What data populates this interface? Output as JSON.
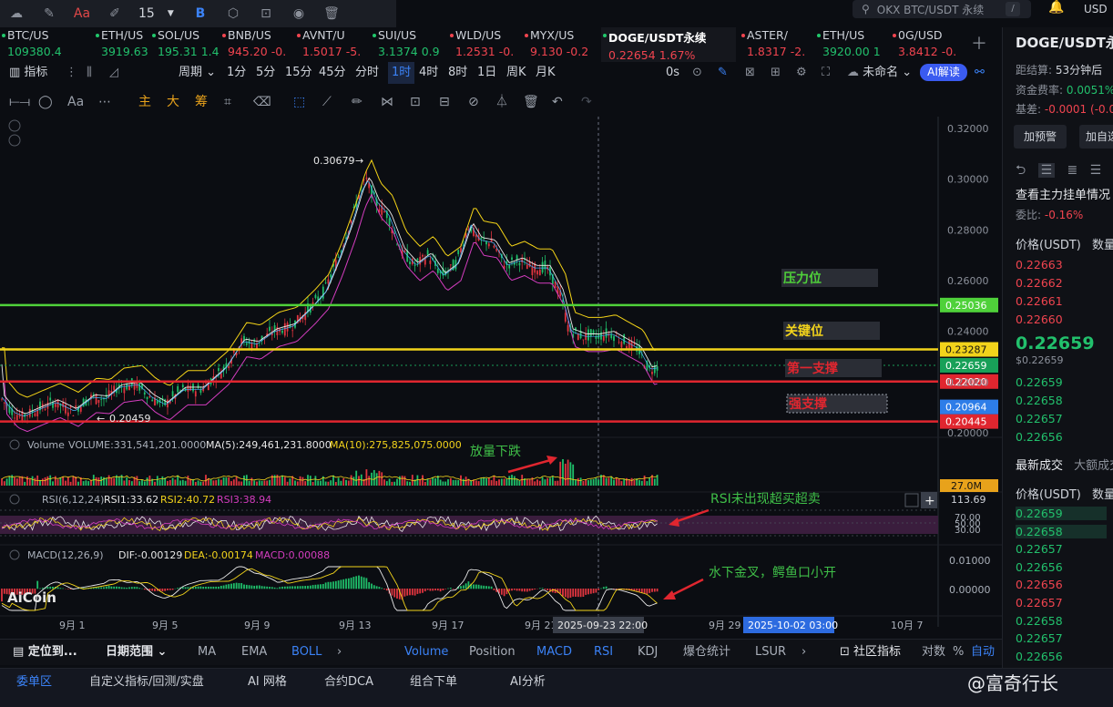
{
  "top_toolbar": {
    "font_size": "15",
    "icons": [
      "cloud-sync-icon",
      "edit-icon",
      "text-color-icon",
      "highlight-icon",
      "size-icon",
      "bold-icon",
      "settings-icon",
      "lock-icon",
      "visibility-icon",
      "delete-icon"
    ],
    "text_color_label": "Aa",
    "bold_label": "B"
  },
  "search": {
    "placeholder": "OKX BTC/USDT 永续",
    "shortcut": "/"
  },
  "currency": "USD",
  "tickers": [
    {
      "name": "BTC/US",
      "price": "109380.4",
      "change": "",
      "dir": "up"
    },
    {
      "name": "ETH/US",
      "price": "3919.63",
      "change": "1",
      "dir": "up"
    },
    {
      "name": "SOL/US",
      "price": "195.31",
      "change": "1.4",
      "dir": "up"
    },
    {
      "name": "BNB/US",
      "price": "945.20",
      "change": "-0.",
      "dir": "dn"
    },
    {
      "name": "AVNT/U",
      "price": "1.5017",
      "change": "-5.",
      "dir": "dn"
    },
    {
      "name": "SUI/US",
      "price": "3.1374",
      "change": "0.9",
      "dir": "up"
    },
    {
      "name": "WLD/US",
      "price": "1.2531",
      "change": "-0.",
      "dir": "dn"
    },
    {
      "name": "MYX/US",
      "price": "9.130",
      "change": "-0.2",
      "dir": "dn"
    },
    {
      "name": "DOGE/USDT永续",
      "price": "0.22654",
      "change": "1.67%",
      "dir": "up"
    },
    {
      "name": "ASTER/",
      "price": "1.8317",
      "change": "-2.",
      "dir": "dn"
    },
    {
      "name": "ETH/US",
      "price": "3920.00",
      "change": "1",
      "dir": "up"
    },
    {
      "name": "0G/USD",
      "price": "3.8412",
      "change": "-0.",
      "dir": "dn"
    }
  ],
  "period_bar": {
    "indicator": "指标",
    "period": "周期",
    "periods": [
      "1分",
      "5分",
      "15分",
      "45分",
      "分时",
      "1时",
      "4时",
      "8时",
      "1日",
      "周K",
      "月K"
    ],
    "selected": "1时",
    "countdown": "0s",
    "layout_name": "未命名",
    "ai_button": "AI解读"
  },
  "draw_toolbar": {
    "labels": [
      "主",
      "大",
      "筹"
    ],
    "text_label": "Aa"
  },
  "chart": {
    "high_label": "0.30679",
    "low_label": "0.20459",
    "y_ticks": [
      "0.32000",
      "0.30000",
      "0.28000",
      "0.26000",
      "0.24000",
      "0.22000",
      "0.20000"
    ],
    "x_ticks": [
      "9月 1",
      "9月 5",
      "9月 9",
      "9月 13",
      "9月 17",
      "9月 21",
      "9月 29",
      "10月 7"
    ],
    "crosshair_x_label": "2025-09-23 22:00",
    "future_label": "2025-10-02 03:00",
    "annotations": {
      "pressure": "压力位",
      "key": "关键位",
      "first_support": "第一支撑",
      "strong_support": "强支撑",
      "volume_note": "放量下跌",
      "rsi_note": "RSI未出现超买超卖",
      "macd_note": "水下金叉，鳄鱼口小开"
    },
    "levels": [
      {
        "name": "pressure",
        "price": "0.25036",
        "color": "#4fd13a"
      },
      {
        "name": "key",
        "price": "0.23287",
        "color": "#f2d31b"
      },
      {
        "name": "current",
        "price": "0.22659",
        "color": "#18a058"
      },
      {
        "name": "first-support",
        "price": "0.22020",
        "color": "#e0262f"
      },
      {
        "name": "strong-support",
        "price": "0.20445",
        "color": "#e0262f"
      },
      {
        "name": "extra",
        "price": "0.20964",
        "color": "#2d7de8"
      }
    ],
    "volume": {
      "label": "Volume",
      "vol_text": "VOLUME:331,541,201.0000",
      "ma5_text": "MA(5):249,461,231.8000",
      "ma10_text": "MA(10):275,825,075.0000",
      "axis_label": "27.0M"
    },
    "rsi": {
      "label": "RSI(6,12,24)",
      "rsi1_text": "RSI1:33.62",
      "rsi2_text": "RSI2:40.72",
      "rsi3_text": "RSI3:38.94",
      "axis_top": "113.69",
      "levels": [
        "70.00",
        "50.00",
        "30.00"
      ]
    },
    "macd": {
      "label": "MACD(12,26,9)",
      "dif_text": "DIF:-0.00129",
      "dea_text": "DEA:-0.00174",
      "macd_text": "MACD:0.00088",
      "ticks": [
        "0.01000",
        "0.00000"
      ]
    },
    "logo": "AiCoin"
  },
  "right_panel": {
    "title": "DOGE/USDT永续",
    "settle": "距结算:",
    "settle_val": "53分钟后",
    "funding": "资金费率:",
    "funding_val": "0.0051%",
    "basis": "基差:",
    "basis_val": "-0.0001 (-0.0",
    "alert_button": "加预警",
    "add_button": "加自选",
    "depth_title": "查看主力挂单情况",
    "ratio_label": "委比:",
    "ratio_val": "-0.16%",
    "price_header": "价格(USDT)",
    "qty_header": "数量",
    "asks": [
      "0.22663",
      "0.22662",
      "0.22661",
      "0.22660"
    ],
    "last_price": "0.22659",
    "last_sub": "$0.22659",
    "bids": [
      "0.22659",
      "0.22658",
      "0.22657",
      "0.22656"
    ],
    "trades_title": "最新成交",
    "trades_tab2": "大额成交",
    "trades_header": "价格(USDT)",
    "trades_qty": "数量",
    "trades": [
      {
        "p": "0.22659",
        "d": "up"
      },
      {
        "p": "0.22658",
        "d": "up"
      },
      {
        "p": "0.22657",
        "d": "up"
      },
      {
        "p": "0.22656",
        "d": "up"
      },
      {
        "p": "0.22656",
        "d": "dn"
      },
      {
        "p": "0.22657",
        "d": "dn"
      },
      {
        "p": "0.22658",
        "d": "up"
      },
      {
        "p": "0.22657",
        "d": "up"
      },
      {
        "p": "0.22656",
        "d": "up"
      },
      {
        "p": "0.22656",
        "d": "up"
      }
    ]
  },
  "bottom_bar1": {
    "locate": "定位到...",
    "range": "日期范围",
    "items": [
      "MA",
      "EMA",
      "BOLL",
      "Volume",
      "Position",
      "MACD",
      "RSI",
      "KDJ",
      "爆仓统计",
      "LSUR"
    ],
    "community": "社区指标",
    "log": "对数",
    "percent": "%",
    "auto": "自动"
  },
  "bottom_bar2": {
    "items": [
      "委单区",
      "自定义指标/回测/实盘",
      "AI 网格",
      "合约DCA",
      "组合下单",
      "AI分析"
    ],
    "watermark": "@富奇行长"
  }
}
